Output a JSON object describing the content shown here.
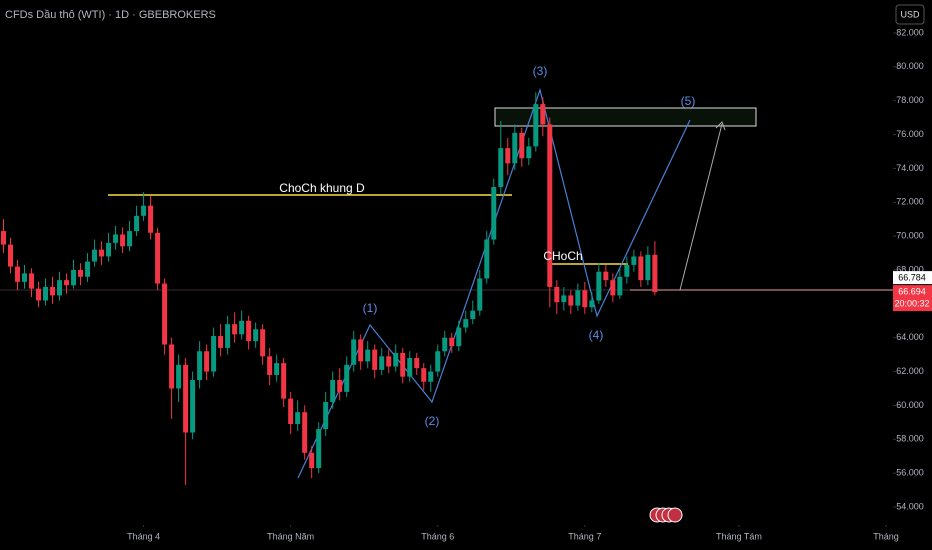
{
  "chart_data": {
    "type": "candlestick",
    "title": "CFDs Dầu thô (WTI) · 1D · GBEBROKERS",
    "currency": "USD",
    "up_color": "#089981",
    "down_color": "#f23645",
    "grid": false,
    "open": [
      70.3,
      69.5,
      68.2,
      67.3,
      67.8,
      66.9,
      66.2,
      67.0,
      66.5,
      67.4,
      67.1,
      68.0,
      67.6,
      68.5,
      69.2,
      68.8,
      69.6,
      70.1,
      69.4,
      70.3,
      71.2,
      71.8,
      70.2,
      67.2,
      63.6,
      61.0,
      62.4,
      58.4,
      61.5,
      63.2,
      62.0,
      64.1,
      63.4,
      64.8,
      64.2,
      65.0,
      63.8,
      64.5,
      62.9,
      61.8,
      62.5,
      60.4,
      58.9,
      59.6,
      57.2,
      56.3,
      58.6,
      60.2,
      61.5,
      60.8,
      62.4,
      63.9,
      62.6,
      63.3,
      62.1,
      62.9,
      62.3,
      63.1,
      61.7,
      62.8,
      62.2,
      61.4,
      62.0,
      63.2,
      64.0,
      63.5,
      64.6,
      65.1,
      65.6,
      67.5,
      69.8,
      72.9,
      75.2,
      74.3,
      76.1,
      74.6,
      75.3,
      77.8,
      76.6,
      67.0,
      66.1,
      66.5,
      65.9,
      66.8,
      65.8,
      66.2,
      67.9,
      67.4,
      66.5,
      67.6,
      68.3,
      68.8,
      67.4,
      68.9
    ],
    "high": [
      71.0,
      69.9,
      68.6,
      68.3,
      68.1,
      67.3,
      67.5,
      67.6,
      67.9,
      67.8,
      68.6,
      68.4,
      69.0,
      69.8,
      69.7,
      70.2,
      70.6,
      70.5,
      70.9,
      71.8,
      72.6,
      72.4,
      70.5,
      67.5,
      64.0,
      63.0,
      62.8,
      62.0,
      63.8,
      63.6,
      64.6,
      64.8,
      65.3,
      65.5,
      65.6,
      65.3,
      64.9,
      64.8,
      63.4,
      63.0,
      62.8,
      60.8,
      60.3,
      60.0,
      57.6,
      59.0,
      60.8,
      62.0,
      62.2,
      62.9,
      64.4,
      64.2,
      63.8,
      63.6,
      63.4,
      63.3,
      63.6,
      63.4,
      63.2,
      63.1,
      62.5,
      62.4,
      63.6,
      64.4,
      64.3,
      65.0,
      65.6,
      66.2,
      68.0,
      70.3,
      73.4,
      76.8,
      75.8,
      76.6,
      76.4,
      75.8,
      78.5,
      78.2,
      77.0,
      67.4,
      67.0,
      66.8,
      67.2,
      67.3,
      66.7,
      68.4,
      68.3,
      67.8,
      68.1,
      68.8,
      69.2,
      69.1,
      69.4,
      69.7
    ],
    "low": [
      69.0,
      67.8,
      66.8,
      66.9,
      66.4,
      65.8,
      65.9,
      66.0,
      66.2,
      66.6,
      66.9,
      67.1,
      67.3,
      68.2,
      68.3,
      68.5,
      69.2,
      69.0,
      69.1,
      70.0,
      70.9,
      69.8,
      66.8,
      63.0,
      59.2,
      60.2,
      55.3,
      58.0,
      61.0,
      61.5,
      61.7,
      62.9,
      63.0,
      63.7,
      63.9,
      63.3,
      63.4,
      62.4,
      61.2,
      61.4,
      59.9,
      58.3,
      58.5,
      56.8,
      55.7,
      56.0,
      58.2,
      59.8,
      60.3,
      60.5,
      62.0,
      62.1,
      62.2,
      61.6,
      61.8,
      61.9,
      62.0,
      61.3,
      61.4,
      61.8,
      60.9,
      60.8,
      61.7,
      62.9,
      63.1,
      63.2,
      64.3,
      64.8,
      65.3,
      67.2,
      69.5,
      72.5,
      73.6,
      73.9,
      74.1,
      74.2,
      75.0,
      75.9,
      65.8,
      65.4,
      65.6,
      65.4,
      65.6,
      65.4,
      65.5,
      66.0,
      67.0,
      66.1,
      66.3,
      67.2,
      67.9,
      67.0,
      67.1,
      66.5
    ],
    "close": [
      69.5,
      68.2,
      67.3,
      67.8,
      66.9,
      66.2,
      67.0,
      66.5,
      67.4,
      67.1,
      68.0,
      67.6,
      68.5,
      69.2,
      68.8,
      69.6,
      70.1,
      69.4,
      70.3,
      71.2,
      71.8,
      70.2,
      67.2,
      63.6,
      61.0,
      62.4,
      58.4,
      61.5,
      63.2,
      62.0,
      64.1,
      63.4,
      64.8,
      64.2,
      65.0,
      63.8,
      64.5,
      62.9,
      61.8,
      62.5,
      60.4,
      58.9,
      59.6,
      57.2,
      56.3,
      58.6,
      60.2,
      61.5,
      60.8,
      62.4,
      63.9,
      62.6,
      63.3,
      62.1,
      62.9,
      62.3,
      63.1,
      61.7,
      62.8,
      62.2,
      61.4,
      62.0,
      63.2,
      64.0,
      63.5,
      64.6,
      65.1,
      65.6,
      67.5,
      69.8,
      72.9,
      75.2,
      74.3,
      76.1,
      74.6,
      75.3,
      77.8,
      76.6,
      67.0,
      66.1,
      66.5,
      65.9,
      66.8,
      65.8,
      66.2,
      67.9,
      67.4,
      66.5,
      67.6,
      68.3,
      68.8,
      67.4,
      68.9,
      66.694
    ],
    "xlim": [
      -0.5,
      127
    ],
    "xticks": [
      {
        "value": 20,
        "label": "Tháng 4"
      },
      {
        "value": 41,
        "label": "Tháng Năm"
      },
      {
        "value": 62,
        "label": "Tháng 6"
      },
      {
        "value": 83,
        "label": "Tháng 7"
      },
      {
        "value": 105,
        "label": "Tháng Tám"
      },
      {
        "value": 126,
        "label": "Tháng"
      }
    ],
    "ylim": [
      54,
      82
    ],
    "yticks": [
      {
        "value": 54,
        "label": "54.000"
      },
      {
        "value": 56,
        "label": "56.000"
      },
      {
        "value": 58,
        "label": "58.000"
      },
      {
        "value": 60,
        "label": "60.000"
      },
      {
        "value": 62,
        "label": "62.000"
      },
      {
        "value": 64,
        "label": "64.000"
      },
      {
        "value": 66,
        "label": "66.000"
      },
      {
        "value": 68,
        "label": "68.000"
      },
      {
        "value": 70,
        "label": "70.000"
      },
      {
        "value": 72,
        "label": "72.000"
      },
      {
        "value": 74,
        "label": "74.000"
      },
      {
        "value": 76,
        "label": "76.000"
      },
      {
        "value": 78,
        "label": "78.000"
      },
      {
        "value": 80,
        "label": "80.000"
      },
      {
        "value": 82,
        "label": "82.000"
      }
    ],
    "price_labels": [
      {
        "value": 66.784,
        "label": "66.784"
      },
      {
        "value": 66.694,
        "label": "66.694"
      }
    ],
    "countdown": "20:00:32",
    "annotations": [
      "ChoCh khung D",
      "CHoCh",
      "(1)",
      "(2)",
      "(3)",
      "(4)",
      "(5)"
    ]
  }
}
